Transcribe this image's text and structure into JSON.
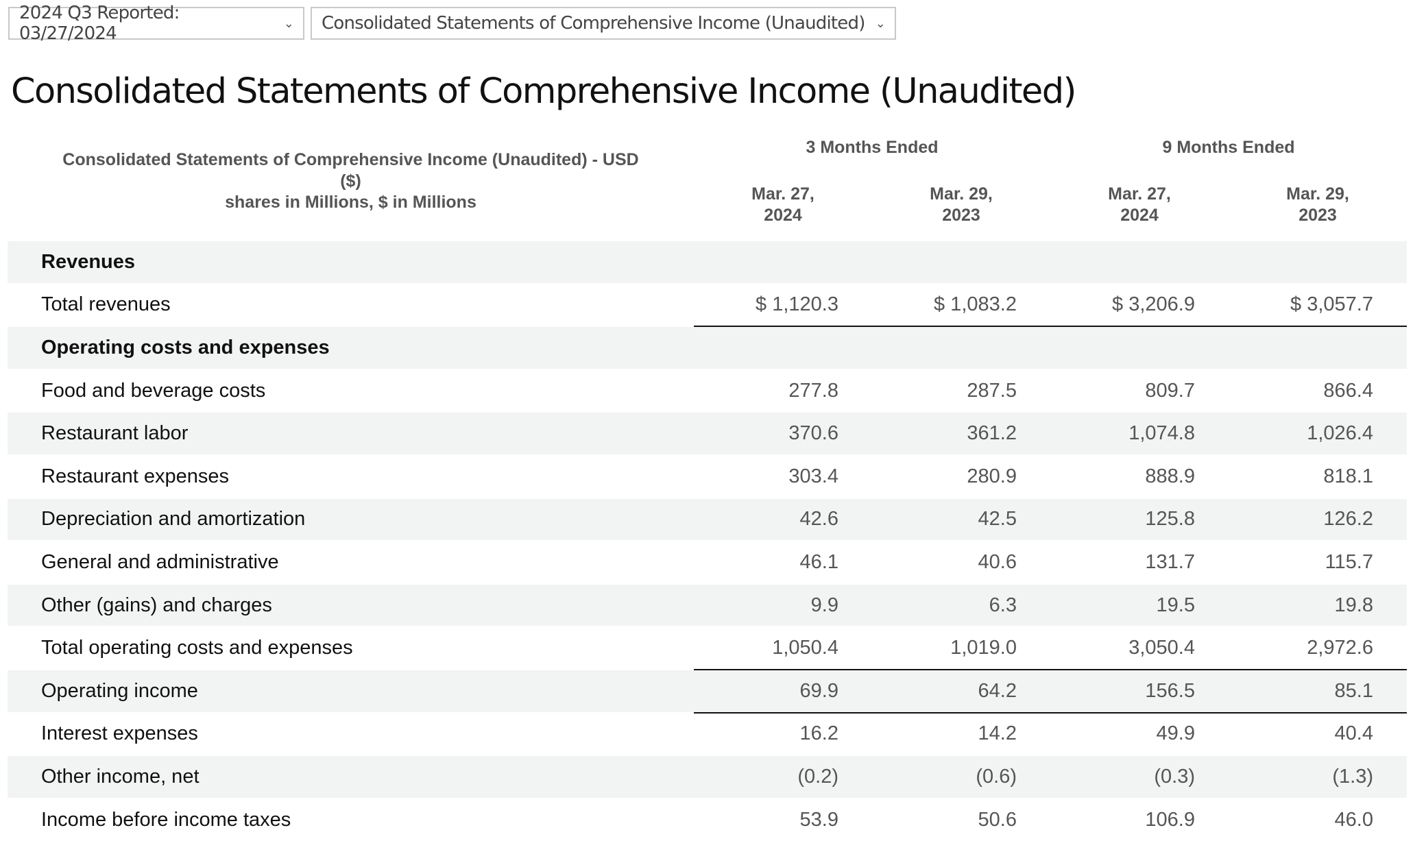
{
  "dropdowns": {
    "period": "2024 Q3 Reported: 03/27/2024",
    "statement": "Consolidated Statements of Comprehensive Income (Unaudited)"
  },
  "title": "Consolidated Statements of Comprehensive Income (Unaudited)",
  "header": {
    "label_line1": "Consolidated Statements of Comprehensive Income (Unaudited) - USD ($)",
    "label_line2": "shares in Millions, $ in Millions",
    "group1": "3 Months Ended",
    "group2": "9 Months Ended",
    "dates": [
      {
        "l1": "Mar. 27,",
        "l2": "2024"
      },
      {
        "l1": "Mar. 29,",
        "l2": "2023"
      },
      {
        "l1": "Mar. 27,",
        "l2": "2024"
      },
      {
        "l1": "Mar. 29,",
        "l2": "2023"
      }
    ]
  },
  "rows": [
    {
      "label": "Revenues",
      "values": [
        "",
        "",
        "",
        ""
      ]
    },
    {
      "label": "Total revenues",
      "values": [
        "$ 1,120.3",
        "$ 1,083.2",
        "$ 3,206.9",
        "$ 3,057.7"
      ]
    },
    {
      "label": "Operating costs and expenses",
      "values": [
        "",
        "",
        "",
        ""
      ]
    },
    {
      "label": "Food and beverage costs",
      "values": [
        "277.8",
        "287.5",
        "809.7",
        "866.4"
      ]
    },
    {
      "label": "Restaurant labor",
      "values": [
        "370.6",
        "361.2",
        "1,074.8",
        "1,026.4"
      ]
    },
    {
      "label": "Restaurant expenses",
      "values": [
        "303.4",
        "280.9",
        "888.9",
        "818.1"
      ]
    },
    {
      "label": "Depreciation and amortization",
      "values": [
        "42.6",
        "42.5",
        "125.8",
        "126.2"
      ]
    },
    {
      "label": "General and administrative",
      "values": [
        "46.1",
        "40.6",
        "131.7",
        "115.7"
      ]
    },
    {
      "label": "Other (gains) and charges",
      "values": [
        "9.9",
        "6.3",
        "19.5",
        "19.8"
      ]
    },
    {
      "label": "Total operating costs and expenses",
      "values": [
        "1,050.4",
        "1,019.0",
        "3,050.4",
        "2,972.6"
      ]
    },
    {
      "label": "Operating income",
      "values": [
        "69.9",
        "64.2",
        "156.5",
        "85.1"
      ]
    },
    {
      "label": "Interest expenses",
      "values": [
        "16.2",
        "14.2",
        "49.9",
        "40.4"
      ]
    },
    {
      "label": "Other income, net",
      "values": [
        "(0.2)",
        "(0.6)",
        "(0.3)",
        "(1.3)"
      ]
    },
    {
      "label": "Income before income taxes",
      "values": [
        "53.9",
        "50.6",
        "106.9",
        "46.0"
      ]
    }
  ]
}
